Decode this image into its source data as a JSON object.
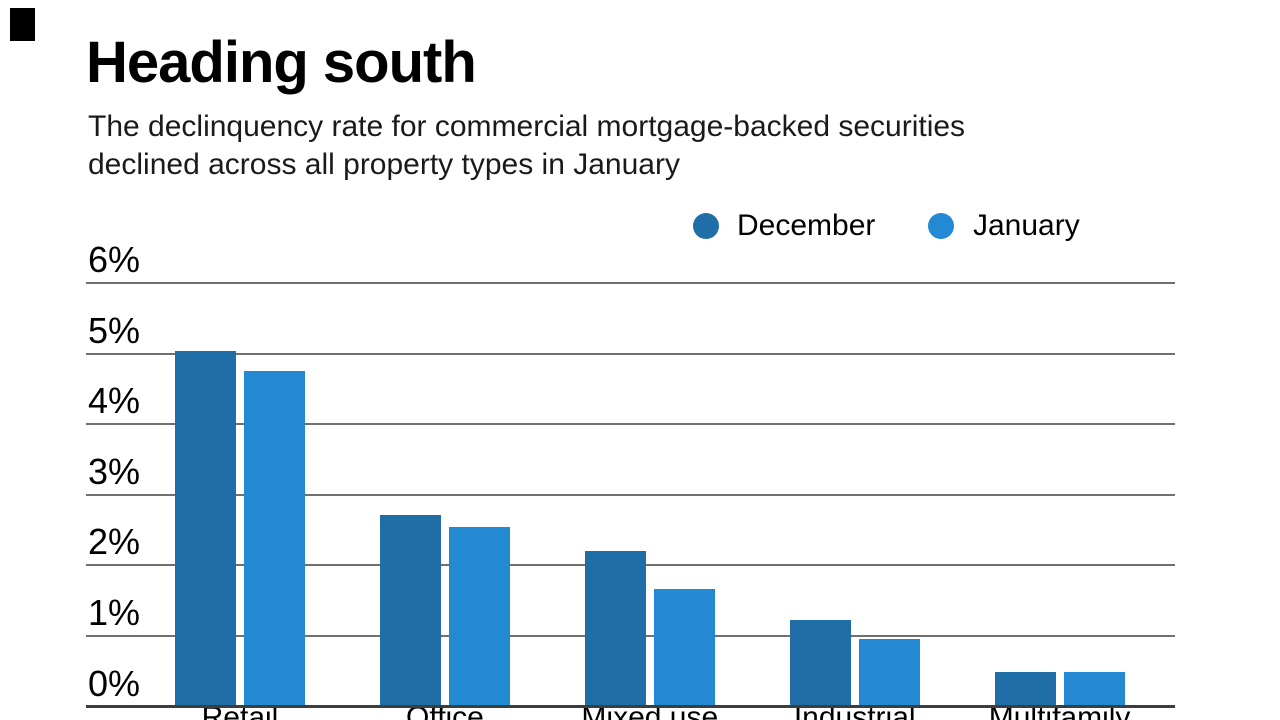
{
  "header": {
    "brand_mark": "black-rectangle",
    "title": "Heading south",
    "subtitle": [
      "The declinquency rate for commercial mortgage-backed securities",
      "declined across all property types in January"
    ]
  },
  "chart_data": {
    "type": "bar",
    "title": "Heading south",
    "subtitle": "The declinquency rate for commercial mortgage-backed securities declined across all property types in January",
    "categories": [
      "Retail",
      "Office",
      "Mixed use",
      "Industrial",
      "Multifamily"
    ],
    "series": [
      {
        "name": "December",
        "color": "#1f6ea8",
        "values": [
          5.03,
          2.72,
          2.2,
          1.22,
          0.49
        ]
      },
      {
        "name": "January",
        "color": "#2289d2",
        "values": [
          4.75,
          2.55,
          1.66,
          0.95,
          0.49
        ]
      }
    ],
    "xlabel": "",
    "ylabel": "",
    "y_ticks": [
      "6%",
      "5%",
      "4%",
      "3%",
      "2%",
      "1%",
      "0%"
    ],
    "ylim": [
      0,
      6
    ],
    "grid": true,
    "legend_position": "top-right",
    "colors": {
      "gridline": "#707070",
      "axis": "#3d3d3d",
      "text": "#000000",
      "background": "#ffffff"
    }
  }
}
